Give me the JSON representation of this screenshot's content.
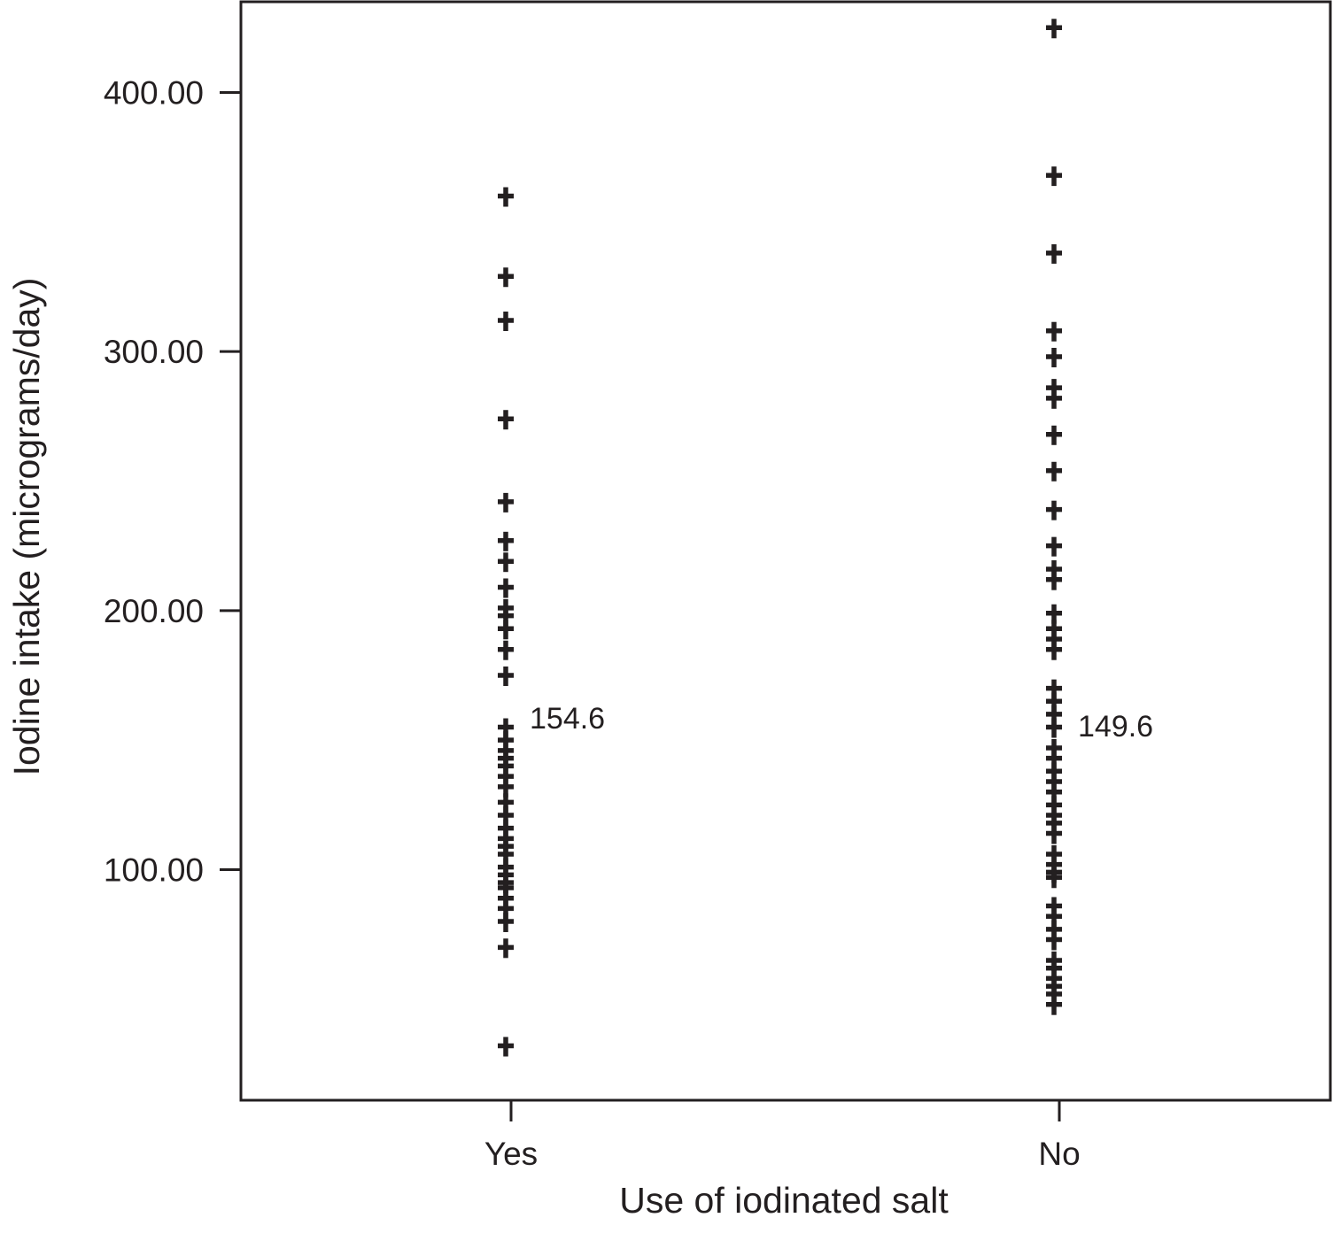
{
  "chart_data": {
    "type": "scatter",
    "xlabel": "Use of iodinated salt",
    "ylabel": "Iodine intake (micrograms/day)",
    "categories": [
      "Yes",
      "No"
    ],
    "y_ticks": [
      "100.00",
      "200.00",
      "300.00",
      "400.00"
    ],
    "ylim": [
      11,
      435
    ],
    "grid": false,
    "legend": "none",
    "series": [
      {
        "category": "Yes",
        "values": [
          360,
          329,
          312,
          274,
          242,
          227,
          219,
          209,
          201,
          198,
          193,
          185,
          175,
          155,
          150,
          146,
          143,
          140,
          136,
          132,
          126,
          121,
          116,
          112,
          109,
          106,
          101,
          98,
          95,
          93,
          89,
          85,
          80,
          70,
          32
        ],
        "annotation": "154.6"
      },
      {
        "category": "No",
        "values": [
          425,
          368,
          338,
          308,
          298,
          286,
          282,
          268,
          254,
          239,
          225,
          216,
          212,
          199,
          193,
          189,
          185,
          170,
          165,
          160,
          155,
          147,
          143,
          138,
          134,
          130,
          125,
          121,
          118,
          114,
          106,
          102,
          99,
          97,
          86,
          82,
          77,
          73,
          65,
          62,
          58,
          55,
          52,
          48
        ],
        "annotation": "149.6"
      }
    ],
    "colors": {
      "ink": "#231f20",
      "background": "#ffffff"
    }
  }
}
